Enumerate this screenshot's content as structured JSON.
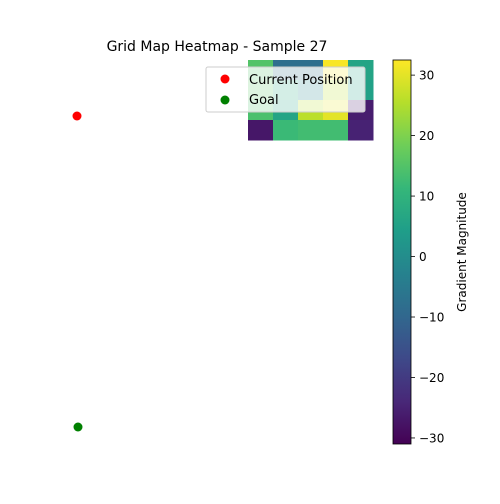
{
  "chart_data": {
    "type": "heatmap",
    "title": "Grid Map Heatmap - Sample 27",
    "grid": {
      "columns": 5,
      "rows": 4,
      "values": [
        [
          15,
          -8,
          -8,
          32,
          6
        ],
        [
          16,
          8,
          -2,
          26,
          5
        ],
        [
          14,
          6,
          26,
          30,
          -26
        ],
        [
          -27,
          12,
          13,
          13,
          -25
        ]
      ]
    },
    "overlay": {
      "legend_position": "upper-right",
      "legend_alpha": 0.8,
      "items": [
        {
          "label": "Current Position",
          "color": "#ff0000"
        },
        {
          "label": "Goal",
          "color": "#008000"
        }
      ]
    },
    "colorbar": {
      "label": "Gradient Magnitude",
      "colormap": "viridis",
      "min": -31,
      "max": 32.5,
      "ticks": [
        -30,
        -20,
        -10,
        0,
        10,
        20,
        30
      ],
      "tick_labels": [
        "−30",
        "−20",
        "−10",
        "0",
        "10",
        "20",
        "30"
      ]
    },
    "axes_visible": false
  }
}
